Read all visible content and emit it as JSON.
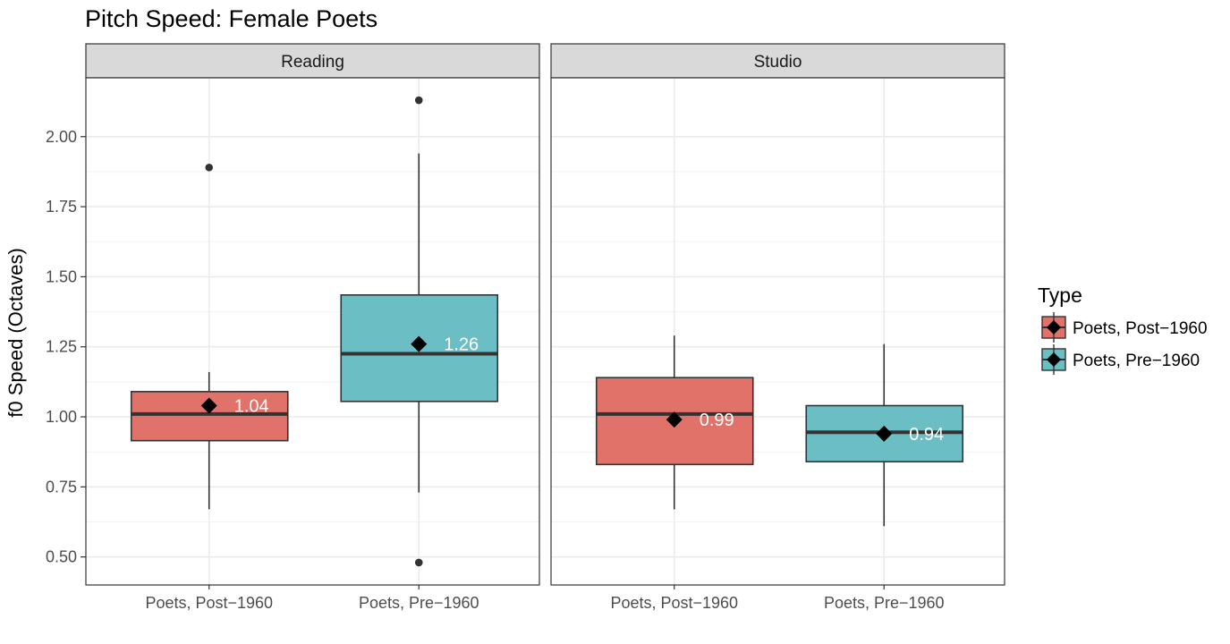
{
  "chart_data": {
    "type": "boxplot",
    "title": "Pitch Speed: Female Poets",
    "ylabel": "f0 Speed (Octaves)",
    "xlabel": "",
    "ylim": [
      0.4,
      2.21
    ],
    "y_ticks": [
      0.5,
      0.75,
      1.0,
      1.25,
      1.5,
      1.75,
      2.0
    ],
    "y_tick_labels": [
      "0.50",
      "0.75",
      "1.00",
      "1.25",
      "1.50",
      "1.75",
      "2.00"
    ],
    "grid": true,
    "categories": [
      "Poets, Post−1960",
      "Poets, Pre−1960"
    ],
    "legend": {
      "title": "Type",
      "position": "right",
      "entries": [
        {
          "label": "Poets, Post−1960",
          "color": "#E0726A"
        },
        {
          "label": "Poets, Pre−1960",
          "color": "#6BBFC4"
        }
      ]
    },
    "panels": [
      {
        "name": "Reading",
        "boxes": [
          {
            "category": "Poets, Post−1960",
            "whisker_low": 0.67,
            "q1": 0.915,
            "median": 1.01,
            "q3": 1.09,
            "whisker_high": 1.16,
            "outliers": [
              1.89
            ],
            "mean": 1.04,
            "mean_label": "1.04"
          },
          {
            "category": "Poets, Pre−1960",
            "whisker_low": 0.73,
            "q1": 1.055,
            "median": 1.225,
            "q3": 1.435,
            "whisker_high": 1.94,
            "outliers": [
              2.13,
              0.48
            ],
            "mean": 1.26,
            "mean_label": "1.26"
          }
        ]
      },
      {
        "name": "Studio",
        "boxes": [
          {
            "category": "Poets, Post−1960",
            "whisker_low": 0.67,
            "q1": 0.83,
            "median": 1.01,
            "q3": 1.14,
            "whisker_high": 1.29,
            "outliers": [],
            "mean": 0.99,
            "mean_label": "0.99"
          },
          {
            "category": "Poets, Pre−1960",
            "whisker_low": 0.61,
            "q1": 0.84,
            "median": 0.945,
            "q3": 1.04,
            "whisker_high": 1.26,
            "outliers": [],
            "mean": 0.94,
            "mean_label": "0.94"
          }
        ]
      }
    ]
  }
}
